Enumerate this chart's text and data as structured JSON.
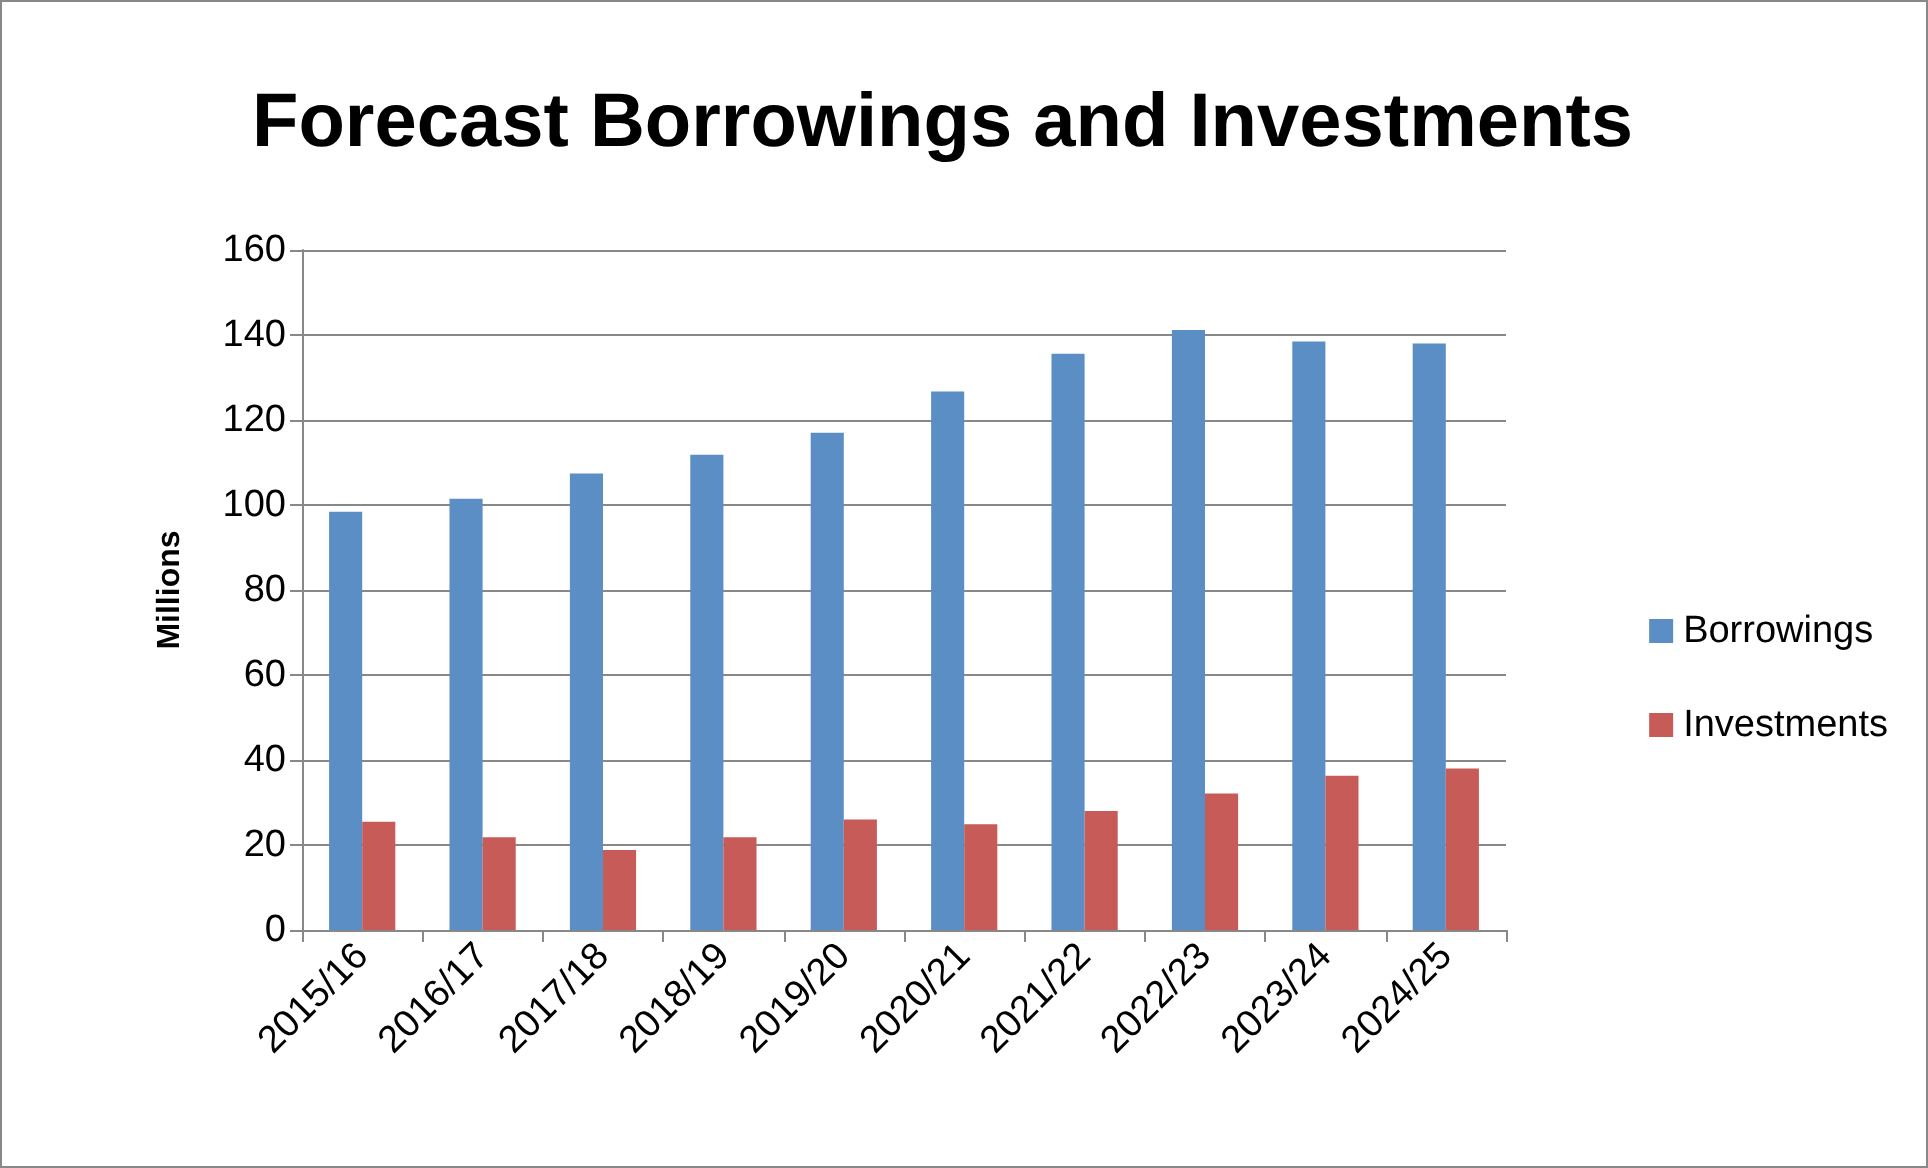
{
  "chart_data": {
    "type": "bar",
    "title": "Forecast Borrowings and Investments",
    "ylabel": "Millions",
    "categories": [
      "2015/16",
      "2016/17",
      "2017/18",
      "2018/19",
      "2019/20",
      "2020/21",
      "2021/22",
      "2022/23",
      "2023/24",
      "2024/25"
    ],
    "series": [
      {
        "name": "Borrowings",
        "color": "#5b8ec5",
        "values": [
          98.4,
          101.5,
          107.4,
          111.8,
          117,
          126.7,
          135.6,
          141.2,
          138.5,
          138
        ]
      },
      {
        "name": "Investments",
        "color": "#c65b57",
        "values": [
          25.5,
          21.8,
          18.8,
          21.8,
          26,
          24.9,
          28,
          32.1,
          36.3,
          38
        ]
      }
    ],
    "ylim": [
      0,
      160
    ],
    "yticks": [
      0,
      20,
      40,
      60,
      80,
      100,
      120,
      140,
      160
    ],
    "grid": "y",
    "legend": "right"
  }
}
